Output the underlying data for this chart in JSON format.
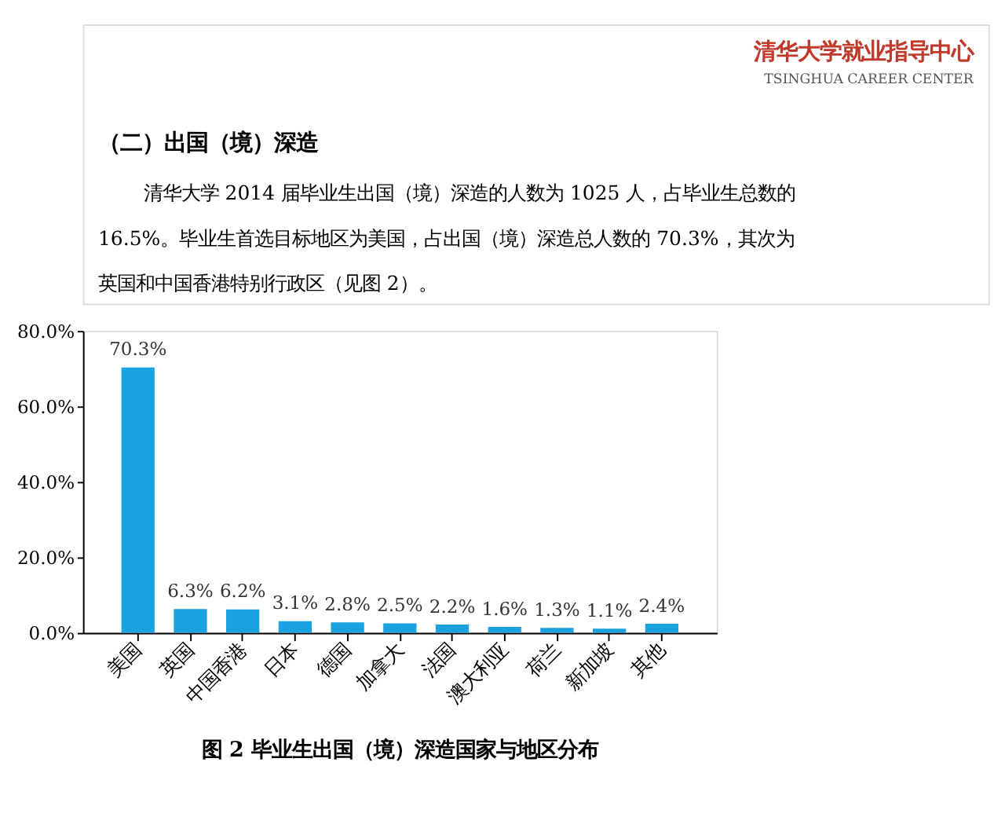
{
  "chart_data": {
    "type": "bar",
    "title": "图 2 毕业生出国（境）深造国家与地区分布",
    "annotations": [
      "清华大学就业指导中心",
      "TSINGHUA CAREER CENTER",
      "（二）出国（境）深造",
      "清华大学 2014 届毕业生出国（境）深造的人数为 1025 人，占毕业生总数的",
      "16.5%。毕业生首选目标地区为美国，占出国（境）深造总人数的 70.3%，其次为",
      "英国和中国香港特别行政区（见图 2）。"
    ],
    "categories": [
      "美国",
      "英国",
      "中国香港",
      "日本",
      "德国",
      "加拿大",
      "法国",
      "澳大利亚",
      "荷兰",
      "新加坡",
      "其他"
    ],
    "values": [
      70.3,
      6.3,
      6.2,
      3.1,
      2.8,
      2.5,
      2.2,
      1.6,
      1.3,
      1.1,
      2.4
    ],
    "value_labels": [
      "70.3%",
      "6.3%",
      "6.2%",
      "3.1%",
      "2.8%",
      "2.5%",
      "2.2%",
      "1.6%",
      "1.3%",
      "1.1%",
      "2.4%"
    ],
    "color": "#1aa3e0",
    "ylim": [
      0,
      80
    ],
    "yticks": [
      {
        "value": 0,
        "label": "0.0%"
      },
      {
        "value": 20,
        "label": "20.0%"
      },
      {
        "value": 40,
        "label": "40.0%"
      },
      {
        "value": 60,
        "label": "60.0%"
      },
      {
        "value": 80,
        "label": "80.0%"
      }
    ],
    "grid": false
  }
}
